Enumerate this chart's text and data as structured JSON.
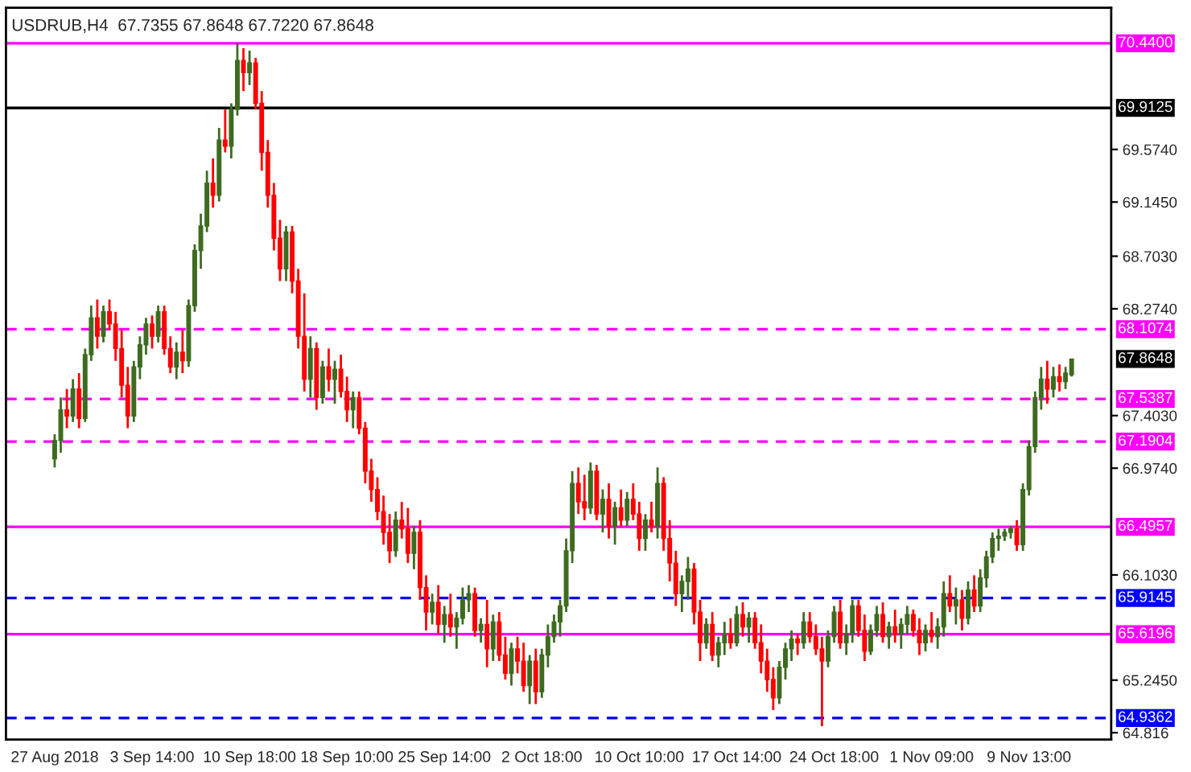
{
  "chart_data": {
    "type": "candlestick",
    "title": "USDRUB,H4  67.7355 67.8648 67.7220 67.8648",
    "categories": [
      "27 Aug 2018",
      null,
      null,
      null,
      null,
      null,
      null,
      null,
      null,
      null,
      null,
      null,
      null,
      null,
      null,
      null,
      "3 Sep 14:00",
      null,
      null,
      null,
      null,
      null,
      null,
      null,
      null,
      null,
      null,
      null,
      null,
      null,
      null,
      null,
      "10 Sep 18:00",
      null,
      null,
      null,
      null,
      null,
      null,
      null,
      null,
      null,
      null,
      null,
      null,
      null,
      null,
      null,
      "18 Sep 10:00",
      null,
      null,
      null,
      null,
      null,
      null,
      null,
      null,
      null,
      null,
      null,
      null,
      null,
      null,
      null,
      "25 Sep 14:00",
      null,
      null,
      null,
      null,
      null,
      null,
      null,
      null,
      null,
      null,
      null,
      null,
      null,
      null,
      null,
      "2 Oct 18:00",
      null,
      null,
      null,
      null,
      null,
      null,
      null,
      null,
      null,
      null,
      null,
      null,
      null,
      null,
      null,
      "10 Oct 10:00",
      null,
      null,
      null,
      null,
      null,
      null,
      null,
      null,
      null,
      null,
      null,
      null,
      null,
      null,
      null,
      "17 Oct 14:00",
      null,
      null,
      null,
      null,
      null,
      null,
      null,
      null,
      null,
      null,
      null,
      null,
      null,
      null,
      null,
      "24 Oct 18:00",
      null,
      null,
      null,
      null,
      null,
      null,
      null,
      null,
      null,
      null,
      null,
      null,
      null,
      null,
      null,
      "1 Nov 09:00",
      null,
      null,
      null,
      null,
      null,
      null,
      null,
      null,
      null,
      null,
      null,
      null,
      null,
      null,
      null,
      "9 Nov 13:00",
      null,
      null,
      null,
      null,
      null,
      null,
      null
    ],
    "ohlc": [
      [
        67.05,
        67.25,
        66.98,
        67.2
      ],
      [
        67.2,
        67.55,
        67.1,
        67.45
      ],
      [
        67.45,
        67.62,
        67.3,
        67.4
      ],
      [
        67.4,
        67.7,
        67.35,
        67.62
      ],
      [
        67.62,
        67.75,
        67.3,
        67.38
      ],
      [
        67.38,
        67.95,
        67.35,
        67.9
      ],
      [
        67.9,
        68.3,
        67.85,
        68.2
      ],
      [
        68.2,
        68.35,
        67.95,
        68.05
      ],
      [
        68.05,
        68.3,
        68.0,
        68.25
      ],
      [
        68.25,
        68.35,
        68.1,
        68.15
      ],
      [
        68.15,
        68.25,
        67.85,
        67.95
      ],
      [
        67.95,
        68.1,
        67.55,
        67.65
      ],
      [
        67.65,
        67.8,
        67.3,
        67.4
      ],
      [
        67.4,
        67.85,
        67.35,
        67.8
      ],
      [
        67.8,
        68.05,
        67.7,
        67.98
      ],
      [
        67.98,
        68.2,
        67.9,
        68.15
      ],
      [
        68.15,
        68.22,
        67.95,
        68.05
      ],
      [
        68.05,
        68.3,
        68.0,
        68.25
      ],
      [
        68.25,
        68.3,
        67.9,
        67.95
      ],
      [
        67.95,
        68.05,
        67.75,
        67.8
      ],
      [
        67.8,
        68.0,
        67.7,
        67.92
      ],
      [
        67.92,
        68.1,
        67.75,
        67.85
      ],
      [
        67.85,
        68.35,
        67.8,
        68.3
      ],
      [
        68.3,
        68.8,
        68.25,
        68.75
      ],
      [
        68.75,
        69.05,
        68.6,
        68.95
      ],
      [
        68.95,
        69.4,
        68.9,
        69.3
      ],
      [
        69.3,
        69.5,
        69.1,
        69.2
      ],
      [
        69.2,
        69.75,
        69.15,
        69.65
      ],
      [
        69.65,
        69.9,
        69.55,
        69.6
      ],
      [
        69.6,
        69.95,
        69.5,
        69.9
      ],
      [
        69.9,
        70.44,
        69.85,
        70.3
      ],
      [
        70.3,
        70.4,
        70.05,
        70.2
      ],
      [
        70.2,
        70.38,
        70.1,
        70.28
      ],
      [
        70.28,
        70.32,
        69.9,
        69.95
      ],
      [
        69.95,
        70.05,
        69.4,
        69.55
      ],
      [
        69.55,
        69.65,
        69.1,
        69.2
      ],
      [
        69.2,
        69.3,
        68.75,
        68.85
      ],
      [
        68.85,
        69.0,
        68.5,
        68.6
      ],
      [
        68.6,
        68.95,
        68.5,
        68.9
      ],
      [
        68.9,
        68.95,
        68.4,
        68.5
      ],
      [
        68.5,
        68.6,
        67.95,
        68.05
      ],
      [
        68.05,
        68.4,
        67.6,
        67.7
      ],
      [
        67.7,
        68.05,
        67.55,
        67.95
      ],
      [
        67.95,
        68.0,
        67.45,
        67.55
      ],
      [
        67.55,
        67.85,
        67.5,
        67.8
      ],
      [
        67.8,
        67.95,
        67.6,
        67.7
      ],
      [
        67.7,
        67.85,
        67.5,
        67.78
      ],
      [
        67.78,
        67.9,
        67.55,
        67.6
      ],
      [
        67.6,
        67.72,
        67.35,
        67.45
      ],
      [
        67.45,
        67.6,
        67.3,
        67.55
      ],
      [
        67.55,
        67.6,
        67.25,
        67.3
      ],
      [
        67.3,
        67.35,
        66.85,
        66.95
      ],
      [
        66.95,
        67.05,
        66.7,
        66.8
      ],
      [
        66.8,
        66.9,
        66.55,
        66.62
      ],
      [
        66.62,
        66.75,
        66.35,
        66.45
      ],
      [
        66.45,
        66.6,
        66.2,
        66.3
      ],
      [
        66.3,
        66.62,
        66.25,
        66.55
      ],
      [
        66.55,
        66.7,
        66.4,
        66.48
      ],
      [
        66.48,
        66.65,
        66.2,
        66.28
      ],
      [
        66.28,
        66.5,
        66.15,
        66.45
      ],
      [
        66.45,
        66.55,
        65.9,
        66.0
      ],
      [
        66.0,
        66.1,
        65.65,
        65.8
      ],
      [
        65.8,
        65.95,
        65.7,
        65.88
      ],
      [
        65.88,
        66.02,
        65.62,
        65.7
      ],
      [
        65.7,
        65.85,
        65.55,
        65.78
      ],
      [
        65.78,
        65.95,
        65.6,
        65.68
      ],
      [
        65.68,
        65.8,
        65.5,
        65.75
      ],
      [
        65.75,
        66.0,
        65.7,
        65.9
      ],
      [
        65.9,
        66.02,
        65.8,
        65.95
      ],
      [
        65.95,
        66.0,
        65.6,
        65.65
      ],
      [
        65.65,
        65.75,
        65.55,
        65.7
      ],
      [
        65.7,
        65.9,
        65.35,
        65.5
      ],
      [
        65.5,
        65.78,
        65.4,
        65.72
      ],
      [
        65.72,
        65.8,
        65.4,
        65.45
      ],
      [
        65.45,
        65.6,
        65.25,
        65.3
      ],
      [
        65.3,
        65.55,
        65.2,
        65.5
      ],
      [
        65.5,
        65.6,
        65.3,
        65.4
      ],
      [
        65.4,
        65.55,
        65.15,
        65.2
      ],
      [
        65.2,
        65.45,
        65.05,
        65.4
      ],
      [
        65.4,
        65.5,
        65.05,
        65.15
      ],
      [
        65.15,
        65.5,
        65.1,
        65.45
      ],
      [
        65.45,
        65.7,
        65.35,
        65.6
      ],
      [
        65.6,
        65.78,
        65.55,
        65.72
      ],
      [
        65.72,
        65.9,
        65.6,
        65.85
      ],
      [
        65.85,
        66.4,
        65.8,
        66.3
      ],
      [
        66.3,
        66.95,
        66.2,
        66.85
      ],
      [
        66.85,
        66.98,
        66.6,
        66.7
      ],
      [
        66.7,
        66.92,
        66.55,
        66.65
      ],
      [
        66.65,
        67.02,
        66.6,
        66.95
      ],
      [
        66.95,
        67.0,
        66.55,
        66.6
      ],
      [
        66.6,
        66.8,
        66.45,
        66.72
      ],
      [
        66.72,
        66.85,
        66.4,
        66.5
      ],
      [
        66.5,
        66.7,
        66.35,
        66.65
      ],
      [
        66.65,
        66.8,
        66.5,
        66.55
      ],
      [
        66.55,
        66.78,
        66.5,
        66.72
      ],
      [
        66.72,
        66.85,
        66.55,
        66.6
      ],
      [
        66.6,
        66.7,
        66.3,
        66.4
      ],
      [
        66.4,
        66.6,
        66.3,
        66.55
      ],
      [
        66.55,
        66.7,
        66.45,
        66.5
      ],
      [
        66.5,
        66.98,
        66.4,
        66.85
      ],
      [
        66.85,
        66.9,
        66.3,
        66.4
      ],
      [
        66.4,
        66.55,
        66.05,
        66.2
      ],
      [
        66.2,
        66.3,
        65.85,
        65.95
      ],
      [
        65.95,
        66.1,
        65.8,
        66.05
      ],
      [
        66.05,
        66.25,
        65.9,
        66.15
      ],
      [
        66.15,
        66.2,
        65.7,
        65.8
      ],
      [
        65.8,
        65.9,
        65.4,
        65.55
      ],
      [
        65.55,
        65.75,
        65.5,
        65.7
      ],
      [
        65.7,
        65.8,
        65.4,
        65.45
      ],
      [
        65.45,
        65.6,
        65.35,
        65.55
      ],
      [
        65.55,
        65.72,
        65.45,
        65.62
      ],
      [
        65.62,
        65.75,
        65.5,
        65.55
      ],
      [
        65.55,
        65.85,
        65.52,
        65.78
      ],
      [
        65.78,
        65.88,
        65.6,
        65.68
      ],
      [
        65.68,
        65.8,
        65.55,
        65.75
      ],
      [
        65.75,
        65.8,
        65.5,
        65.55
      ],
      [
        65.55,
        65.7,
        65.3,
        65.4
      ],
      [
        65.4,
        65.5,
        65.15,
        65.25
      ],
      [
        65.25,
        65.35,
        65.0,
        65.1
      ],
      [
        65.1,
        65.4,
        65.05,
        65.35
      ],
      [
        65.35,
        65.55,
        65.25,
        65.5
      ],
      [
        65.5,
        65.65,
        65.4,
        65.58
      ],
      [
        65.58,
        65.62,
        65.45,
        65.55
      ],
      [
        65.55,
        65.8,
        65.5,
        65.72
      ],
      [
        65.72,
        65.8,
        65.55,
        65.6
      ],
      [
        65.6,
        65.7,
        65.45,
        65.5
      ],
      [
        65.5,
        65.6,
        64.87,
        65.4
      ],
      [
        65.4,
        65.65,
        65.35,
        65.6
      ],
      [
        65.6,
        65.85,
        65.55,
        65.8
      ],
      [
        65.8,
        65.9,
        65.5,
        65.55
      ],
      [
        65.55,
        65.7,
        65.45,
        65.62
      ],
      [
        65.62,
        65.9,
        65.55,
        65.85
      ],
      [
        65.85,
        65.9,
        65.6,
        65.65
      ],
      [
        65.65,
        65.78,
        65.4,
        65.48
      ],
      [
        65.48,
        65.7,
        65.45,
        65.65
      ],
      [
        65.65,
        65.85,
        65.6,
        65.78
      ],
      [
        65.78,
        65.88,
        65.55,
        65.6
      ],
      [
        65.6,
        65.72,
        65.5,
        65.68
      ],
      [
        65.68,
        65.82,
        65.55,
        65.62
      ],
      [
        65.62,
        65.75,
        65.5,
        65.7
      ],
      [
        65.7,
        65.85,
        65.62,
        65.78
      ],
      [
        65.78,
        65.82,
        65.6,
        65.65
      ],
      [
        65.65,
        65.75,
        65.45,
        65.55
      ],
      [
        65.55,
        65.7,
        65.48,
        65.65
      ],
      [
        65.65,
        65.8,
        65.55,
        65.6
      ],
      [
        65.6,
        65.75,
        65.5,
        65.68
      ],
      [
        65.68,
        66.05,
        65.6,
        65.95
      ],
      [
        65.95,
        66.1,
        65.8,
        65.85
      ],
      [
        65.85,
        66.0,
        65.7,
        65.9
      ],
      [
        65.9,
        65.98,
        65.65,
        65.75
      ],
      [
        65.75,
        66.05,
        65.7,
        65.98
      ],
      [
        65.98,
        66.1,
        65.8,
        65.85
      ],
      [
        65.85,
        66.15,
        65.8,
        66.08
      ],
      [
        66.08,
        66.3,
        66.0,
        66.25
      ],
      [
        66.25,
        66.45,
        66.2,
        66.4
      ],
      [
        66.4,
        66.48,
        66.3,
        66.42
      ],
      [
        66.42,
        66.48,
        66.38,
        66.45
      ],
      [
        66.45,
        66.5,
        66.4,
        66.48
      ],
      [
        66.48,
        66.55,
        66.3,
        66.35
      ],
      [
        66.35,
        66.85,
        66.3,
        66.8
      ],
      [
        66.8,
        67.2,
        66.75,
        67.15
      ],
      [
        67.15,
        67.6,
        67.1,
        67.55
      ],
      [
        67.55,
        67.8,
        67.45,
        67.7
      ],
      [
        67.7,
        67.85,
        67.5,
        67.62
      ],
      [
        67.62,
        67.8,
        67.55,
        67.72
      ],
      [
        67.72,
        67.82,
        67.6,
        67.68
      ],
      [
        67.68,
        67.8,
        67.62,
        67.75
      ],
      [
        67.7355,
        67.8648,
        67.722,
        67.8648
      ]
    ],
    "colors": [
      "#3d6b1f",
      "#3d6b1f",
      "#ff0000",
      "#3d6b1f",
      "#ff0000",
      "#3d6b1f",
      "#3d6b1f",
      "#ff0000",
      "#3d6b1f",
      "#ff0000",
      "#ff0000",
      "#ff0000",
      "#ff0000",
      "#3d6b1f",
      "#3d6b1f",
      "#3d6b1f",
      "#ff0000",
      "#3d6b1f",
      "#ff0000",
      "#ff0000",
      "#3d6b1f",
      "#ff0000",
      "#3d6b1f",
      "#3d6b1f",
      "#3d6b1f",
      "#3d6b1f",
      "#ff0000",
      "#3d6b1f",
      "#ff0000",
      "#3d6b1f",
      "#3d6b1f",
      "#ff0000",
      "#3d6b1f",
      "#ff0000",
      "#ff0000",
      "#ff0000",
      "#ff0000",
      "#ff0000",
      "#3d6b1f",
      "#ff0000",
      "#ff0000",
      "#ff0000",
      "#3d6b1f",
      "#ff0000",
      "#3d6b1f",
      "#ff0000",
      "#3d6b1f",
      "#ff0000",
      "#ff0000",
      "#3d6b1f",
      "#ff0000",
      "#ff0000",
      "#ff0000",
      "#ff0000",
      "#ff0000",
      "#ff0000",
      "#3d6b1f",
      "#ff0000",
      "#ff0000",
      "#3d6b1f",
      "#ff0000",
      "#ff0000",
      "#3d6b1f",
      "#ff0000",
      "#3d6b1f",
      "#ff0000",
      "#3d6b1f",
      "#3d6b1f",
      "#3d6b1f",
      "#ff0000",
      "#3d6b1f",
      "#ff0000",
      "#3d6b1f",
      "#ff0000",
      "#ff0000",
      "#3d6b1f",
      "#ff0000",
      "#ff0000",
      "#3d6b1f",
      "#ff0000",
      "#3d6b1f",
      "#3d6b1f",
      "#3d6b1f",
      "#3d6b1f",
      "#3d6b1f",
      "#3d6b1f",
      "#ff0000",
      "#ff0000",
      "#3d6b1f",
      "#ff0000",
      "#3d6b1f",
      "#ff0000",
      "#3d6b1f",
      "#ff0000",
      "#3d6b1f",
      "#ff0000",
      "#ff0000",
      "#3d6b1f",
      "#ff0000",
      "#3d6b1f",
      "#ff0000",
      "#ff0000",
      "#ff0000",
      "#3d6b1f",
      "#3d6b1f",
      "#ff0000",
      "#ff0000",
      "#3d6b1f",
      "#ff0000",
      "#3d6b1f",
      "#3d6b1f",
      "#ff0000",
      "#3d6b1f",
      "#ff0000",
      "#3d6b1f",
      "#ff0000",
      "#ff0000",
      "#ff0000",
      "#ff0000",
      "#3d6b1f",
      "#3d6b1f",
      "#3d6b1f",
      "#ff0000",
      "#3d6b1f",
      "#ff0000",
      "#ff0000",
      "#ff0000",
      "#3d6b1f",
      "#3d6b1f",
      "#ff0000",
      "#3d6b1f",
      "#3d6b1f",
      "#ff0000",
      "#ff0000",
      "#3d6b1f",
      "#3d6b1f",
      "#ff0000",
      "#3d6b1f",
      "#ff0000",
      "#3d6b1f",
      "#3d6b1f",
      "#ff0000",
      "#ff0000",
      "#3d6b1f",
      "#ff0000",
      "#3d6b1f",
      "#3d6b1f",
      "#ff0000",
      "#3d6b1f",
      "#ff0000",
      "#3d6b1f",
      "#ff0000",
      "#3d6b1f",
      "#3d6b1f",
      "#3d6b1f",
      "#3d6b1f",
      "#3d6b1f",
      "#3d6b1f",
      "#ff0000",
      "#3d6b1f",
      "#3d6b1f",
      "#3d6b1f",
      "#3d6b1f",
      "#ff0000",
      "#3d6b1f",
      "#ff0000",
      "#3d6b1f",
      "#3d6b1f"
    ],
    "annotations": [
      "67.8648"
    ],
    "ylim": [
      64.76,
      70.73
    ],
    "yticks": [
      64.816,
      {
        "value": 65.245,
        "label": "65.2450"
      },
      {
        "value": 66.103,
        "label": "66.1030"
      },
      {
        "value": 66.974,
        "label": "66.9740"
      },
      {
        "value": 67.403,
        "label": "67.4030"
      },
      {
        "value": 68.274,
        "label": "68.2740"
      },
      {
        "value": 68.703,
        "label": "68.7030"
      },
      {
        "value": 69.145,
        "label": "69.1450"
      },
      {
        "value": 69.574,
        "label": "69.5740"
      }
    ],
    "grid": false,
    "ref_lines": [
      {
        "axis": "y",
        "value": 70.44,
        "label": "70.4400",
        "color": "#ff00ff",
        "line_style": "solid"
      },
      {
        "axis": "y",
        "value": 69.9125,
        "label": "69.9125",
        "color": "#000000",
        "line_style": "solid"
      },
      {
        "axis": "y",
        "value": 68.1074,
        "label": "68.1074",
        "color": "#ff00ff",
        "line_style": "dashed"
      },
      {
        "axis": "y",
        "value": 67.5387,
        "label": "67.5387",
        "color": "#ff00ff",
        "line_style": "dashed"
      },
      {
        "axis": "y",
        "value": 67.1904,
        "label": "67.1904",
        "color": "#ff00ff",
        "line_style": "dashed"
      },
      {
        "axis": "y",
        "value": 66.4957,
        "label": "66.4957",
        "color": "#ff00ff",
        "line_style": "solid"
      },
      {
        "axis": "y",
        "value": 65.9145,
        "label": "65.9145",
        "color": "#0000ff",
        "line_style": "dashed"
      },
      {
        "axis": "y",
        "value": 65.6196,
        "label": "65.6196",
        "color": "#ff00ff",
        "line_style": "solid"
      },
      {
        "axis": "y",
        "value": 64.9362,
        "label": "64.9362",
        "color": "#0000ff",
        "line_style": "dashed"
      }
    ]
  }
}
